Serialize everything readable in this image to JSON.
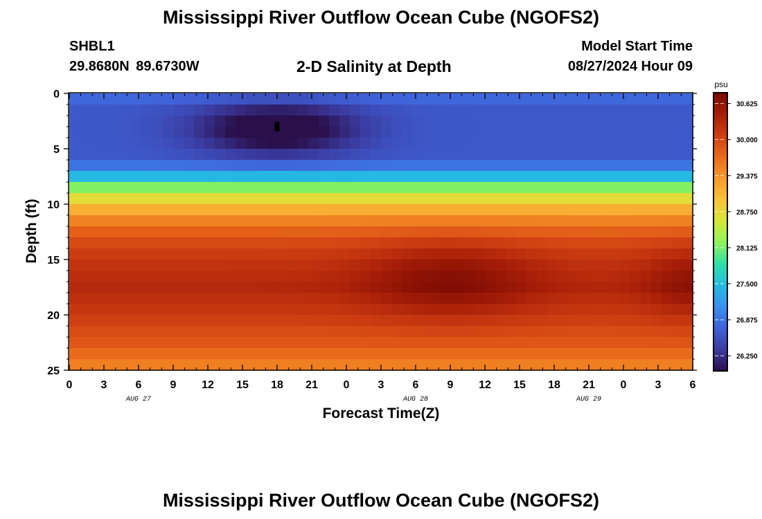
{
  "page": {
    "title": "Mississippi River Outflow Ocean Cube (NGOFS2)",
    "station_id": "SHBL1",
    "coordinates": "29.8680N  89.6730W",
    "subtitle": "2-D Salinity at Depth",
    "model_start_label": "Model Start Time",
    "model_start_value": "08/27/2024 Hour 09",
    "bottom_title": "Mississippi River Outflow Ocean Cube (NGOFS2)"
  },
  "chart_data": {
    "type": "heatmap",
    "title": "2-D Salinity at Depth",
    "xlabel": "Forecast Time(Z)",
    "ylabel": "Depth (ft)",
    "x_tick_labels": [
      "0",
      "3",
      "6",
      "9",
      "12",
      "15",
      "18",
      "21",
      "0",
      "3",
      "6",
      "9",
      "12",
      "15",
      "18",
      "21",
      "0",
      "3",
      "6"
    ],
    "date_labels": [
      {
        "label": "AUG 27",
        "tick_index": 2
      },
      {
        "label": "AUG 28",
        "tick_index": 10
      },
      {
        "label": "AUG 29",
        "tick_index": 15
      }
    ],
    "x_range_hours": [
      0,
      54
    ],
    "y_ticks": [
      0,
      5,
      10,
      15,
      20,
      25
    ],
    "ylim": [
      0,
      25
    ],
    "y_inverted": true,
    "colorbar": {
      "unit": "psu",
      "min": 26.0,
      "max": 30.8,
      "ticks": [
        "30.625",
        "30.000",
        "29.375",
        "28.750",
        "28.125",
        "27.500",
        "26.875",
        "26.250"
      ],
      "colors": [
        "#2a0f4a",
        "#3b3ba0",
        "#3f62d8",
        "#3a8ff0",
        "#23bce0",
        "#2fe0a8",
        "#8ef35a",
        "#d6e838",
        "#f8c23a",
        "#f79a2a",
        "#ea6a1c",
        "#cf3e12",
        "#a51d08",
        "#7a0a02"
      ]
    },
    "salinity_profile": [
      {
        "depth": 0.0,
        "value": 26.85
      },
      {
        "depth": 1.5,
        "value": 26.65
      },
      {
        "depth": 5.5,
        "value": 26.65
      },
      {
        "depth": 7.0,
        "value": 27.0
      },
      {
        "depth": 8.0,
        "value": 27.9
      },
      {
        "depth": 9.0,
        "value": 28.45
      },
      {
        "depth": 10.0,
        "value": 28.95
      },
      {
        "depth": 11.5,
        "value": 29.5
      },
      {
        "depth": 13.0,
        "value": 29.9
      },
      {
        "depth": 15.0,
        "value": 30.15
      },
      {
        "depth": 17.5,
        "value": 30.3
      },
      {
        "depth": 20.0,
        "value": 30.1
      },
      {
        "depth": 22.5,
        "value": 29.85
      },
      {
        "depth": 25.0,
        "value": 29.45
      }
    ],
    "anomalies": [
      {
        "hour": 18,
        "depth": 3.2,
        "hour_spread": 5,
        "depth_spread": 1.6,
        "delta": -0.9
      },
      {
        "hour": 33,
        "depth": 16.8,
        "hour_spread": 5,
        "depth_spread": 2.3,
        "delta": 0.45
      },
      {
        "hour": 54,
        "depth": 17.0,
        "hour_spread": 3,
        "depth_spread": 2.2,
        "delta": 0.35
      }
    ],
    "marker": {
      "hour": 18,
      "depth": 3.0
    }
  }
}
